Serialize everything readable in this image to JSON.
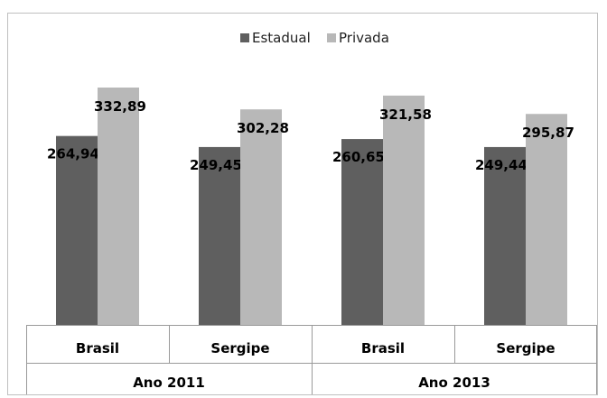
{
  "chart_data": {
    "type": "bar",
    "groups": [
      {
        "label": "Ano 2011",
        "categories": [
          "Brasil",
          "Sergipe"
        ]
      },
      {
        "label": "Ano 2013",
        "categories": [
          "Brasil",
          "Sergipe"
        ]
      }
    ],
    "categories": [
      "Brasil",
      "Sergipe",
      "Brasil",
      "Sergipe"
    ],
    "series": [
      {
        "name": "Estadual",
        "color": "#5f5f5f",
        "values": [
          264.94,
          249.45,
          260.65,
          249.44
        ],
        "labels": [
          "264,94",
          "249,45",
          "260,65",
          "249,44"
        ]
      },
      {
        "name": "Privada",
        "color": "#b8b8b8",
        "values": [
          332.89,
          302.28,
          321.58,
          295.87
        ],
        "labels": [
          "332,89",
          "302,28",
          "321,58",
          "295,87"
        ]
      }
    ],
    "ylim": [
      0,
      350
    ],
    "legend_position": "top-center",
    "grid": false
  }
}
